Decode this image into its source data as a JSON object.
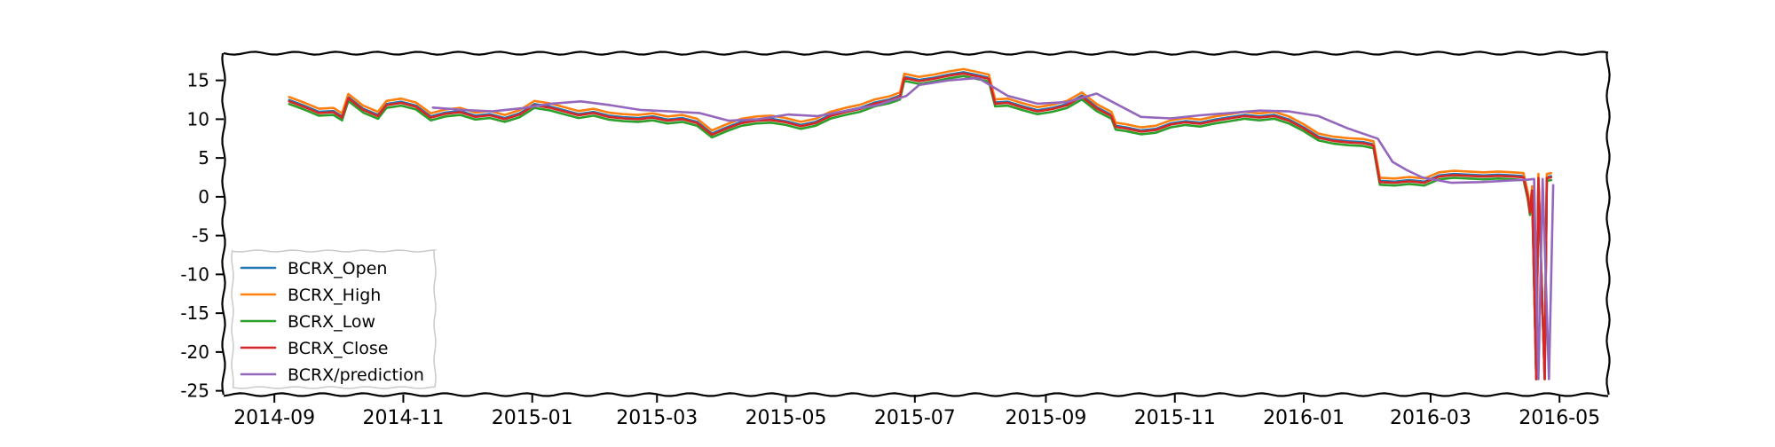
{
  "chart_data": {
    "type": "line",
    "title": "",
    "xlabel": "",
    "ylabel": "",
    "x_range": [
      "2014-08-08",
      "2016-05-24"
    ],
    "ylim": [
      -25.5,
      18.5
    ],
    "grid": false,
    "legend_position": "lower-left",
    "x_ticks": [
      {
        "date": "2014-09-01",
        "label": "2014-09"
      },
      {
        "date": "2014-11-01",
        "label": "2014-11"
      },
      {
        "date": "2015-01-01",
        "label": "2015-01"
      },
      {
        "date": "2015-03-01",
        "label": "2015-03"
      },
      {
        "date": "2015-05-01",
        "label": "2015-05"
      },
      {
        "date": "2015-07-01",
        "label": "2015-07"
      },
      {
        "date": "2015-09-01",
        "label": "2015-09"
      },
      {
        "date": "2015-11-01",
        "label": "2015-11"
      },
      {
        "date": "2016-01-01",
        "label": "2016-01"
      },
      {
        "date": "2016-03-01",
        "label": "2016-03"
      },
      {
        "date": "2016-05-01",
        "label": "2016-05"
      }
    ],
    "y_ticks": [
      {
        "value": 15,
        "label": "15"
      },
      {
        "value": 10,
        "label": "10"
      },
      {
        "value": 5,
        "label": "5"
      },
      {
        "value": 0,
        "label": "0"
      },
      {
        "value": -5,
        "label": "-5"
      },
      {
        "value": -10,
        "label": "-10"
      },
      {
        "value": -15,
        "label": "-15"
      },
      {
        "value": -20,
        "label": "-20"
      },
      {
        "value": -25,
        "label": "-25"
      }
    ],
    "close_points": [
      [
        "2014-09-08",
        12.3
      ],
      [
        "2014-09-15",
        11.6
      ],
      [
        "2014-09-22",
        10.8
      ],
      [
        "2014-09-29",
        10.9
      ],
      [
        "2014-10-03",
        10.2
      ],
      [
        "2014-10-06",
        12.7
      ],
      [
        "2014-10-13",
        11.2
      ],
      [
        "2014-10-20",
        10.4
      ],
      [
        "2014-10-24",
        11.8
      ],
      [
        "2014-10-31",
        12.1
      ],
      [
        "2014-11-07",
        11.6
      ],
      [
        "2014-11-14",
        10.2
      ],
      [
        "2014-11-21",
        10.7
      ],
      [
        "2014-11-28",
        10.9
      ],
      [
        "2014-12-05",
        10.3
      ],
      [
        "2014-12-12",
        10.5
      ],
      [
        "2014-12-19",
        10.0
      ],
      [
        "2014-12-26",
        10.6
      ],
      [
        "2015-01-02",
        11.8
      ],
      [
        "2015-01-09",
        11.5
      ],
      [
        "2015-01-16",
        11.0
      ],
      [
        "2015-01-23",
        10.5
      ],
      [
        "2015-01-30",
        10.8
      ],
      [
        "2015-02-06",
        10.3
      ],
      [
        "2015-02-13",
        10.1
      ],
      [
        "2015-02-20",
        10.0
      ],
      [
        "2015-02-27",
        10.2
      ],
      [
        "2015-03-06",
        9.8
      ],
      [
        "2015-03-13",
        10.0
      ],
      [
        "2015-03-20",
        9.5
      ],
      [
        "2015-03-27",
        8.0
      ],
      [
        "2015-04-03",
        8.8
      ],
      [
        "2015-04-10",
        9.5
      ],
      [
        "2015-04-17",
        9.8
      ],
      [
        "2015-04-24",
        9.9
      ],
      [
        "2015-05-01",
        9.6
      ],
      [
        "2015-05-08",
        9.1
      ],
      [
        "2015-05-15",
        9.5
      ],
      [
        "2015-05-22",
        10.4
      ],
      [
        "2015-05-29",
        10.9
      ],
      [
        "2015-06-05",
        11.3
      ],
      [
        "2015-06-12",
        12.0
      ],
      [
        "2015-06-19",
        12.4
      ],
      [
        "2015-06-24",
        12.9
      ],
      [
        "2015-06-26",
        15.3
      ],
      [
        "2015-07-03",
        14.9
      ],
      [
        "2015-07-10",
        15.2
      ],
      [
        "2015-07-17",
        15.6
      ],
      [
        "2015-07-24",
        15.9
      ],
      [
        "2015-07-31",
        15.5
      ],
      [
        "2015-08-05",
        15.2
      ],
      [
        "2015-08-08",
        12.0
      ],
      [
        "2015-08-14",
        12.1
      ],
      [
        "2015-08-21",
        11.5
      ],
      [
        "2015-08-28",
        11.0
      ],
      [
        "2015-09-04",
        11.3
      ],
      [
        "2015-09-11",
        11.8
      ],
      [
        "2015-09-18",
        12.9
      ],
      [
        "2015-09-25",
        11.4
      ],
      [
        "2015-10-02",
        10.4
      ],
      [
        "2015-10-04",
        9.0
      ],
      [
        "2015-10-09",
        8.8
      ],
      [
        "2015-10-16",
        8.4
      ],
      [
        "2015-10-23",
        8.6
      ],
      [
        "2015-10-30",
        9.3
      ],
      [
        "2015-11-06",
        9.6
      ],
      [
        "2015-11-13",
        9.4
      ],
      [
        "2015-11-20",
        9.8
      ],
      [
        "2015-11-27",
        10.1
      ],
      [
        "2015-12-04",
        10.4
      ],
      [
        "2015-12-11",
        10.2
      ],
      [
        "2015-12-18",
        10.4
      ],
      [
        "2015-12-25",
        9.8
      ],
      [
        "2016-01-01",
        8.8
      ],
      [
        "2016-01-08",
        7.6
      ],
      [
        "2016-01-15",
        7.2
      ],
      [
        "2016-01-22",
        7.0
      ],
      [
        "2016-01-29",
        6.9
      ],
      [
        "2016-02-03",
        6.6
      ],
      [
        "2016-02-06",
        1.9
      ],
      [
        "2016-02-13",
        1.8
      ],
      [
        "2016-02-20",
        2.0
      ],
      [
        "2016-02-27",
        1.8
      ],
      [
        "2016-03-05",
        2.6
      ],
      [
        "2016-03-12",
        2.8
      ],
      [
        "2016-03-19",
        2.7
      ],
      [
        "2016-03-26",
        2.6
      ],
      [
        "2016-04-02",
        2.7
      ],
      [
        "2016-04-09",
        2.6
      ],
      [
        "2016-04-14",
        2.5
      ],
      [
        "2016-04-16",
        0.0
      ],
      [
        "2016-04-17",
        -2.0
      ],
      [
        "2016-04-18",
        0.8
      ],
      [
        "2016-04-20",
        -23.5
      ],
      [
        "2016-04-21",
        2.4
      ],
      [
        "2016-04-24",
        -23.5
      ],
      [
        "2016-04-25",
        2.4
      ],
      [
        "2016-04-27",
        2.5
      ]
    ],
    "prediction_points": [
      [
        "2014-11-15",
        11.5
      ],
      [
        "2014-11-29",
        11.2
      ],
      [
        "2014-12-13",
        11.0
      ],
      [
        "2014-12-27",
        11.4
      ],
      [
        "2015-01-10",
        12.0
      ],
      [
        "2015-01-24",
        12.3
      ],
      [
        "2015-02-07",
        11.8
      ],
      [
        "2015-02-21",
        11.2
      ],
      [
        "2015-03-07",
        11.0
      ],
      [
        "2015-03-21",
        10.8
      ],
      [
        "2015-04-04",
        9.8
      ],
      [
        "2015-04-18",
        10.0
      ],
      [
        "2015-05-02",
        10.6
      ],
      [
        "2015-05-16",
        10.4
      ],
      [
        "2015-05-30",
        11.1
      ],
      [
        "2015-06-13",
        11.8
      ],
      [
        "2015-06-27",
        13.0
      ],
      [
        "2015-07-03",
        14.4
      ],
      [
        "2015-07-17",
        15.0
      ],
      [
        "2015-07-31",
        15.3
      ],
      [
        "2015-08-14",
        13.0
      ],
      [
        "2015-08-28",
        12.0
      ],
      [
        "2015-09-11",
        12.2
      ],
      [
        "2015-09-25",
        13.3
      ],
      [
        "2015-10-02",
        12.3
      ],
      [
        "2015-10-16",
        10.3
      ],
      [
        "2015-10-30",
        10.1
      ],
      [
        "2015-11-13",
        10.5
      ],
      [
        "2015-11-27",
        10.8
      ],
      [
        "2015-12-11",
        11.1
      ],
      [
        "2015-12-25",
        11.0
      ],
      [
        "2016-01-08",
        10.4
      ],
      [
        "2016-01-22",
        8.8
      ],
      [
        "2016-02-05",
        7.5
      ],
      [
        "2016-02-12",
        4.5
      ],
      [
        "2016-02-19",
        3.4
      ],
      [
        "2016-02-26",
        2.5
      ],
      [
        "2016-03-11",
        1.8
      ],
      [
        "2016-03-25",
        1.9
      ],
      [
        "2016-04-08",
        2.1
      ],
      [
        "2016-04-16",
        2.2
      ],
      [
        "2016-04-19",
        2.3
      ],
      [
        "2016-04-21",
        -23.5
      ],
      [
        "2016-04-23",
        2.3
      ],
      [
        "2016-04-26",
        -23.5
      ],
      [
        "2016-04-28",
        1.5
      ]
    ],
    "series": [
      {
        "name": "BCRX_Open",
        "color": "#1f77b4",
        "base": "close",
        "offset": 0.15,
        "jitter": 0.0
      },
      {
        "name": "BCRX_High",
        "color": "#ff7f0e",
        "base": "close",
        "offset": 0.55,
        "jitter": 0.0
      },
      {
        "name": "BCRX_Low",
        "color": "#2ca02c",
        "base": "close",
        "offset": -0.35,
        "jitter": 0.0
      },
      {
        "name": "BCRX_Close",
        "color": "#d62728",
        "base": "close",
        "offset": 0.0,
        "jitter": 0.0
      },
      {
        "name": "BCRX/prediction",
        "color": "#9467bd",
        "base": "prediction",
        "offset": 0.0,
        "jitter": 0.0
      }
    ]
  }
}
